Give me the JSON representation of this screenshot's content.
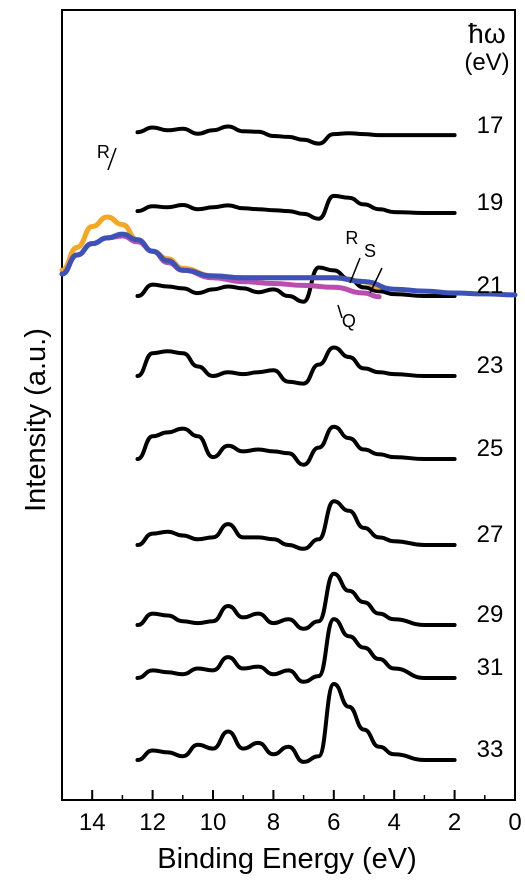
{
  "chart_data": {
    "type": "line",
    "title": "",
    "xlabel": "Binding Energy (eV)",
    "ylabel": "Intensity (a.u.)",
    "xlim": [
      15,
      0
    ],
    "x_reversed": true,
    "xticks": [
      14,
      12,
      10,
      8,
      6,
      4,
      2,
      0
    ],
    "grid": false,
    "legend_title": [
      "ħω",
      "(eV)"
    ],
    "series": [
      {
        "name": "17",
        "color": "#000000",
        "x": [
          12.5,
          12,
          11.5,
          11,
          10.5,
          10,
          9.5,
          9,
          8.5,
          8,
          7.5,
          7,
          6.5,
          6,
          5.5,
          5,
          4.5,
          4,
          3,
          2
        ],
        "y": [
          0.2,
          0.45,
          0.3,
          0.38,
          0.12,
          0.3,
          0.5,
          0.25,
          0.22,
          0.0,
          -0.05,
          -0.2,
          -0.4,
          0.1,
          0.15,
          0.1,
          0.05,
          0.05,
          0.05,
          0.05
        ]
      },
      {
        "name": "19",
        "color": "#000000",
        "x": [
          12.5,
          12,
          11.5,
          11,
          10.5,
          10,
          9.5,
          9,
          8.5,
          8,
          7.5,
          7,
          6.5,
          6,
          5.5,
          5,
          4.5,
          4,
          3,
          2
        ],
        "y": [
          0.1,
          0.35,
          0.3,
          0.42,
          0.2,
          0.3,
          0.4,
          0.25,
          0.2,
          0.15,
          0.1,
          -0.05,
          -0.3,
          0.9,
          0.8,
          0.45,
          0.2,
          0.05,
          0.0,
          0.0
        ]
      },
      {
        "name": "21",
        "color": "#000000",
        "x": [
          12.5,
          12,
          11.5,
          11,
          10.5,
          10,
          9.5,
          9,
          8.5,
          8,
          7.5,
          7,
          6.5,
          6,
          5.5,
          5,
          4.5,
          4,
          3,
          2
        ],
        "y": [
          0.0,
          0.6,
          0.5,
          0.4,
          0.15,
          0.35,
          0.5,
          0.4,
          0.2,
          0.35,
          0.0,
          -0.3,
          1.5,
          1.35,
          0.9,
          0.45,
          0.25,
          0.1,
          0.0,
          0.0
        ]
      },
      {
        "name": "23",
        "color": "#000000",
        "x": [
          12.5,
          12,
          11.5,
          11,
          10.5,
          10,
          9.5,
          9,
          8.5,
          8,
          7.5,
          7,
          6.5,
          6,
          5.5,
          5,
          4.5,
          4,
          3,
          2
        ],
        "y": [
          0.0,
          1.2,
          1.3,
          1.2,
          0.5,
          0.0,
          0.2,
          0.1,
          0.2,
          0.3,
          -0.3,
          -0.4,
          0.6,
          1.5,
          1.0,
          0.4,
          0.2,
          0.1,
          0.0,
          0.0
        ]
      },
      {
        "name": "25",
        "color": "#000000",
        "x": [
          12.5,
          12,
          11.5,
          11,
          10.5,
          10,
          9.5,
          9,
          8.5,
          8,
          7.5,
          7,
          6.5,
          6,
          5.5,
          5,
          4.5,
          4,
          3,
          2
        ],
        "y": [
          0.0,
          1.2,
          1.4,
          1.6,
          1.2,
          0.1,
          0.7,
          0.4,
          0.5,
          0.4,
          0.3,
          -0.3,
          0.6,
          1.7,
          1.1,
          0.5,
          0.25,
          0.1,
          0.0,
          0.0
        ]
      },
      {
        "name": "27",
        "color": "#000000",
        "x": [
          12.5,
          12,
          11.5,
          11,
          10.5,
          10,
          9.5,
          9,
          8.5,
          8,
          7.5,
          7,
          6.5,
          6,
          5.5,
          5,
          4.5,
          4,
          3,
          2
        ],
        "y": [
          0.0,
          0.6,
          0.7,
          0.5,
          0.3,
          0.4,
          1.1,
          0.4,
          0.4,
          0.3,
          0.0,
          -0.2,
          0.3,
          2.3,
          1.8,
          0.9,
          0.4,
          0.2,
          0.0,
          0.0
        ]
      },
      {
        "name": "29",
        "color": "#000000",
        "x": [
          12.5,
          12,
          11.5,
          11,
          10.5,
          10,
          9.5,
          9,
          8.5,
          8,
          7.5,
          7,
          6.5,
          6,
          5.5,
          5,
          4.5,
          4,
          3,
          2
        ],
        "y": [
          0.0,
          0.6,
          0.5,
          0.2,
          0.1,
          0.2,
          1.0,
          0.4,
          0.6,
          0.1,
          0.3,
          -0.2,
          0.2,
          2.7,
          1.8,
          1.2,
          0.6,
          0.3,
          0.0,
          0.0
        ]
      },
      {
        "name": "31",
        "color": "#000000",
        "x": [
          12.5,
          12,
          11.5,
          11,
          10.5,
          10,
          9.5,
          9,
          8.5,
          8,
          7.5,
          7,
          6.5,
          6,
          5.5,
          5,
          4.5,
          4,
          3,
          2
        ],
        "y": [
          0.0,
          0.4,
          0.3,
          0.2,
          0.5,
          0.4,
          1.1,
          0.5,
          0.6,
          0.2,
          0.4,
          -0.2,
          0.1,
          3.1,
          2.2,
          1.6,
          1.0,
          0.5,
          0.0,
          0.0
        ]
      },
      {
        "name": "33",
        "color": "#000000",
        "x": [
          12.5,
          12,
          11.5,
          11,
          10.5,
          10,
          9.5,
          9,
          8.5,
          8,
          7.5,
          7,
          6.5,
          6,
          5.5,
          5,
          4.5,
          4,
          3,
          2
        ],
        "y": [
          0.0,
          0.5,
          0.4,
          0.2,
          0.8,
          0.6,
          1.5,
          0.6,
          0.9,
          0.3,
          0.7,
          -0.1,
          0.2,
          4.0,
          2.8,
          1.6,
          0.7,
          0.3,
          0.0,
          0.0
        ]
      },
      {
        "name": "",
        "color": "#f5a623",
        "x": [
          15,
          14.5,
          14,
          13.5,
          13,
          12.5,
          12,
          11.5,
          11,
          10,
          9,
          8,
          7,
          6,
          5,
          4.5
        ],
        "y": [
          1.2,
          2.4,
          3.5,
          4.0,
          3.6,
          2.8,
          2.2,
          1.8,
          1.3,
          0.9,
          0.8,
          0.8,
          0.8,
          0.8,
          0.6,
          0.3
        ]
      },
      {
        "name": "",
        "color": "#b84fb0",
        "x": [
          15,
          14.5,
          14,
          13.5,
          13,
          12.5,
          12,
          11.5,
          11,
          10,
          9,
          8,
          7,
          6,
          5,
          4.5
        ],
        "y": [
          1.0,
          2.0,
          2.6,
          2.9,
          3.0,
          2.7,
          2.2,
          1.6,
          1.2,
          0.8,
          0.6,
          0.5,
          0.4,
          0.3,
          0.0,
          -0.2
        ]
      },
      {
        "name": "",
        "color": "#3d52b8",
        "x": [
          15,
          14.5,
          14,
          13.5,
          13,
          12.5,
          12,
          11.5,
          11,
          10,
          9,
          8,
          7,
          6,
          5,
          4,
          3,
          2,
          1,
          0
        ],
        "y": [
          1.0,
          2.0,
          2.6,
          2.9,
          3.1,
          2.8,
          2.2,
          1.7,
          1.2,
          0.9,
          0.8,
          0.8,
          0.8,
          0.8,
          0.6,
          0.2,
          0.1,
          0.0,
          -0.05,
          -0.1
        ]
      }
    ],
    "annotations": [
      {
        "text": "R",
        "x": 13.3
      },
      {
        "text": "R",
        "x": 5.4
      },
      {
        "text": "S",
        "x": 4.8
      },
      {
        "text": "Q",
        "x": 5.5
      }
    ]
  }
}
